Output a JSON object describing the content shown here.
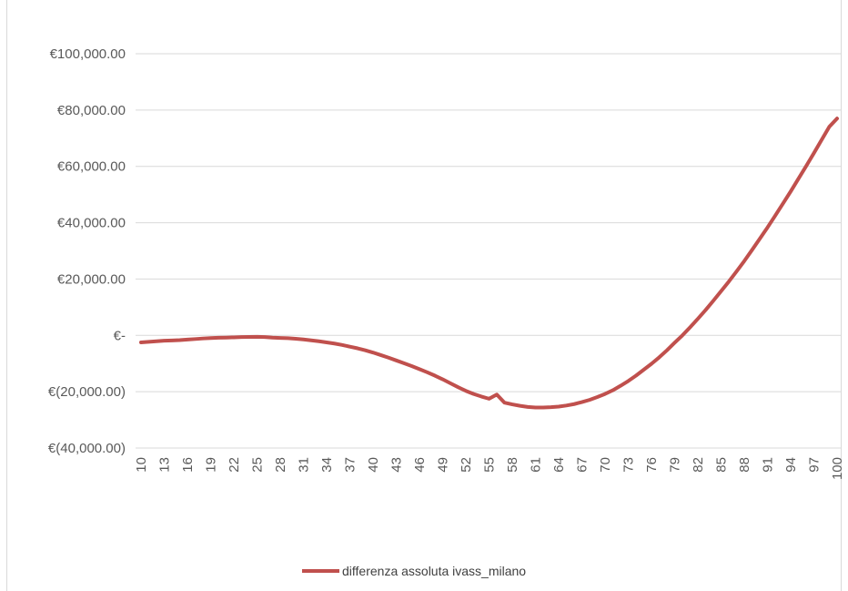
{
  "chart_data": {
    "type": "line",
    "title": "",
    "xlabel": "",
    "ylabel": "",
    "ylim": [
      -40000,
      100000
    ],
    "y_ticks": [
      100000,
      80000,
      60000,
      40000,
      20000,
      0,
      -20000,
      -40000
    ],
    "y_tick_labels": [
      "€100,000.00",
      "€80,000.00",
      "€60,000.00",
      "€40,000.00",
      "€20,000.00",
      "€-",
      "€(20,000.00)",
      "€(40,000.00)"
    ],
    "x_tick_labels": [
      "10",
      "13",
      "16",
      "19",
      "22",
      "25",
      "28",
      "31",
      "34",
      "37",
      "40",
      "43",
      "46",
      "49",
      "52",
      "55",
      "58",
      "61",
      "64",
      "67",
      "70",
      "73",
      "76",
      "79",
      "82",
      "85",
      "88",
      "91",
      "94",
      "97",
      "100"
    ],
    "grid": true,
    "legend_position": "bottom",
    "x": [
      10,
      11,
      12,
      13,
      14,
      15,
      16,
      17,
      18,
      19,
      20,
      21,
      22,
      23,
      24,
      25,
      26,
      27,
      28,
      29,
      30,
      31,
      32,
      33,
      34,
      35,
      36,
      37,
      38,
      39,
      40,
      41,
      42,
      43,
      44,
      45,
      46,
      47,
      48,
      49,
      50,
      51,
      52,
      53,
      54,
      55,
      56,
      57,
      58,
      59,
      60,
      61,
      62,
      63,
      64,
      65,
      66,
      67,
      68,
      69,
      70,
      71,
      72,
      73,
      74,
      75,
      76,
      77,
      78,
      79,
      80,
      81,
      82,
      83,
      84,
      85,
      86,
      87,
      88,
      89,
      90,
      91,
      92,
      93,
      94,
      95,
      96,
      97,
      98,
      99,
      100
    ],
    "series": [
      {
        "name": "differenza assoluta ivass_milano",
        "color": "#c0504d",
        "values": [
          -2500,
          -2300,
          -2100,
          -1900,
          -1800,
          -1700,
          -1500,
          -1300,
          -1100,
          -950,
          -850,
          -800,
          -700,
          -600,
          -550,
          -500,
          -600,
          -800,
          -900,
          -1000,
          -1200,
          -1450,
          -1750,
          -2100,
          -2500,
          -2900,
          -3400,
          -4000,
          -4600,
          -5300,
          -6100,
          -7000,
          -7900,
          -8900,
          -9900,
          -10900,
          -12000,
          -13100,
          -14300,
          -15600,
          -17000,
          -18400,
          -19700,
          -20800,
          -21700,
          -22500,
          -21000,
          -23900,
          -24500,
          -25000,
          -25400,
          -25600,
          -25600,
          -25500,
          -25300,
          -24900,
          -24400,
          -23700,
          -22900,
          -21900,
          -20800,
          -19500,
          -17900,
          -16200,
          -14300,
          -12200,
          -10100,
          -7800,
          -5300,
          -2600,
          0,
          2900,
          5900,
          9000,
          12300,
          15700,
          19100,
          22700,
          26400,
          30300,
          34300,
          38300,
          42500,
          46800,
          51100,
          55600,
          60100,
          64700,
          69400,
          74100,
          77000
        ]
      }
    ]
  }
}
